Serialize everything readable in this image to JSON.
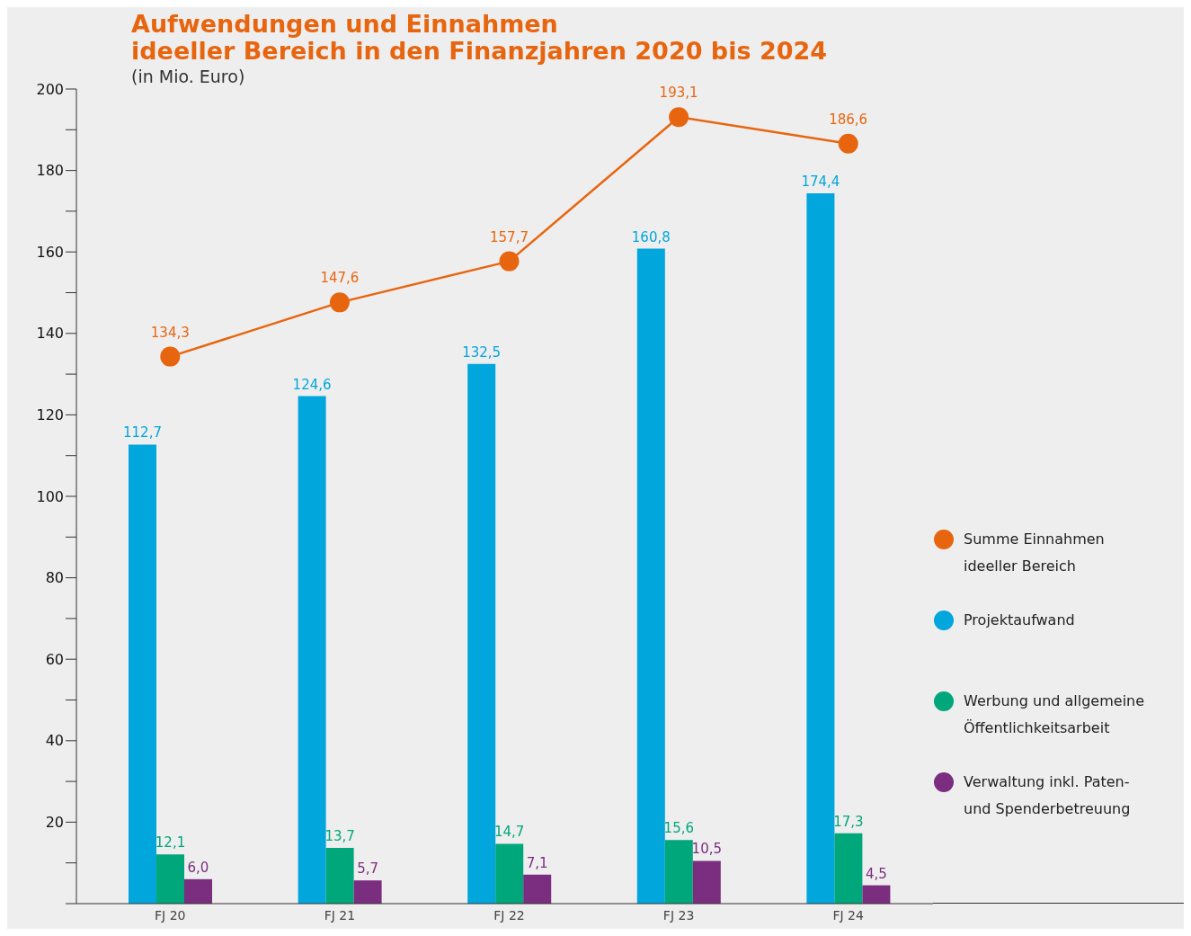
{
  "chart_data": {
    "type": "bar",
    "title": "Aufwendungen und Einnahmen\nideeller Bereich in den Finanzjahren 2020 bis 2024",
    "subtitle": "(in Mio. Euro)",
    "categories": [
      "FJ 20",
      "FJ 21",
      "FJ 22",
      "FJ 23",
      "FJ 24"
    ],
    "series": [
      {
        "name": "Summe Einnahmen ideeller Bereich",
        "type": "line",
        "color": "#e8650f",
        "values": [
          134.3,
          147.6,
          157.7,
          193.1,
          186.6
        ],
        "value_labels": [
          "134,3",
          "147,6",
          "157,7",
          "193,1",
          "186,6"
        ]
      },
      {
        "name": "Projektaufwand",
        "color": "#00a6dc",
        "values": [
          112.7,
          124.6,
          132.5,
          160.8,
          174.4
        ],
        "value_labels": [
          "112,7",
          "124,6",
          "132,5",
          "160,8",
          "174,4"
        ]
      },
      {
        "name": "Werbung und allgemeine Öffentlichkeitsarbeit",
        "color": "#00a77a",
        "values": [
          12.1,
          13.7,
          14.7,
          15.6,
          17.3
        ],
        "value_labels": [
          "12,1",
          "13,7",
          "14,7",
          "15,6",
          "17,3"
        ]
      },
      {
        "name": "Verwaltung inkl. Paten- und Spenderbetreuung",
        "color": "#7b2d7f",
        "values": [
          6.0,
          5.7,
          7.1,
          10.5,
          4.5
        ],
        "value_labels": [
          "6,0",
          "5,7",
          "7,1",
          "10,5",
          "4,5"
        ]
      }
    ],
    "ylim": [
      0,
      200
    ],
    "yticks": [
      {
        "value": 0,
        "label": null
      },
      {
        "value": 10,
        "label": null
      },
      20,
      {
        "value": 30,
        "label": null
      },
      40,
      {
        "value": 50,
        "label": null
      },
      60,
      {
        "value": 70,
        "label": null
      },
      80,
      {
        "value": 90,
        "label": null
      },
      100,
      {
        "value": 110,
        "label": null
      },
      120,
      {
        "value": 130,
        "label": null
      },
      140,
      {
        "value": 150,
        "label": null
      },
      160,
      {
        "value": 170,
        "label": null
      },
      180,
      {
        "value": 190,
        "label": null
      },
      200
    ],
    "grid": false,
    "legend": "right",
    "marker": "circle",
    "line_style": "solid"
  }
}
